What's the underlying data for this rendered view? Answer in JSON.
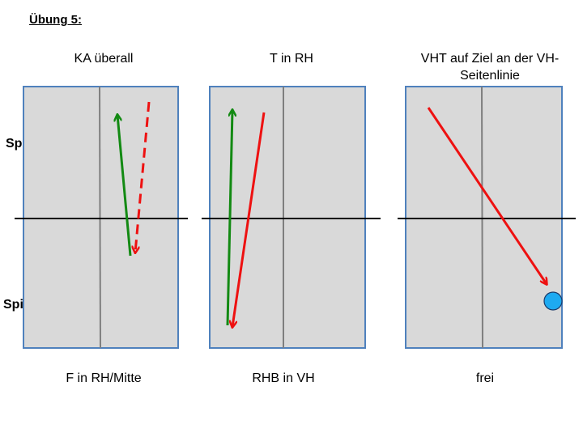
{
  "slide": {
    "title": "Übung 5:"
  },
  "players": {
    "a": "Spieler A",
    "b": "Spieler B"
  },
  "drills": [
    {
      "title": "KA überall",
      "caption": "F in RH/Mitte"
    },
    {
      "title": "T in RH",
      "caption": "RHB in VH"
    },
    {
      "title": "VHT auf Ziel an der VH-Seitenlinie",
      "caption": "frei"
    }
  ],
  "colors": {
    "table_fill": "#d9d9d9",
    "table_border": "#4f81bd",
    "center_line": "#7f7f7f",
    "net": "#000000",
    "green_arrow": "#138a13",
    "red_arrow": "#ee1111",
    "target": "#1eaaf1"
  },
  "icons": {
    "target": "target-circle-icon"
  }
}
